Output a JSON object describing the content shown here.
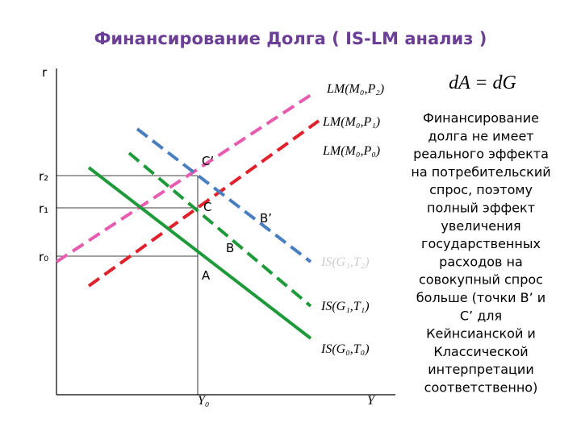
{
  "title": "Финансирование Долга ( IS-LM анализ )",
  "axes": {
    "y_label": "r",
    "x_label": "Y",
    "x_mark": "Y₀",
    "y_marks": [
      "r₂",
      "r₁",
      "r₀"
    ]
  },
  "curves": {
    "lm": [
      "LM(M₀,P₂)",
      "LM(M₀,P₁)",
      "LM(M₀,P₀)"
    ],
    "is": [
      "IS(G₁,T₂)",
      "IS(G₁,T₁)",
      "IS(G₀,T₀)"
    ]
  },
  "points": [
    "C’",
    "C",
    "B’",
    "B",
    "A"
  ],
  "formula": "dA = dG",
  "description": [
    "Финансирование",
    "долга не имеет",
    "реального эффекта",
    "на потребительский",
    "спрос, поэтому",
    "полный эффект",
    "увеличения",
    "государственных",
    "расходов на",
    "совокупный спрос",
    "больше (точки В’ и",
    "С’ для",
    "Кейнсианской и",
    "Классической",
    "интерпретации",
    "соответственно)"
  ]
}
